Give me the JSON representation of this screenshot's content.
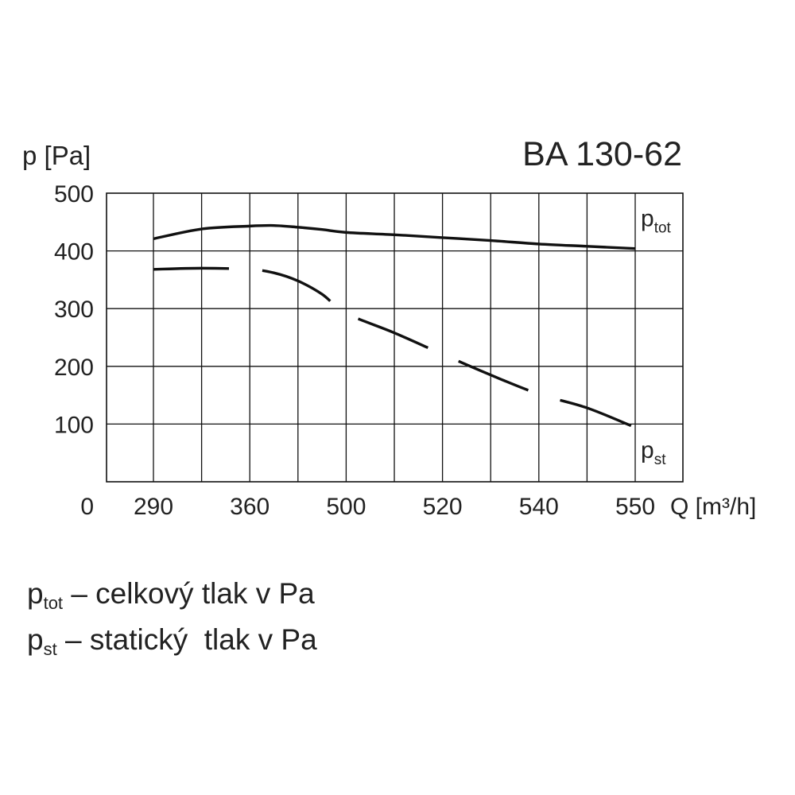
{
  "chart_data": {
    "type": "line",
    "title": "BA 130-62",
    "ylabel": "p [Pa]",
    "xlabel": "Q [m³/h]",
    "origin_label": "0",
    "categories": [
      "290",
      "360",
      "500",
      "520",
      "540",
      "550"
    ],
    "yticks": [
      100,
      200,
      300,
      400,
      500
    ],
    "ylim": [
      0,
      500
    ],
    "grid": true,
    "series": [
      {
        "name": "ptot",
        "label_main": "p",
        "label_sub": "tot",
        "style": "solid",
        "x": [
          290,
          325,
          360,
          395,
          430,
          465,
          500,
          510,
          520,
          530,
          540,
          545,
          550
        ],
        "y": [
          421,
          438,
          443,
          444,
          441,
          437,
          432,
          428,
          423,
          418,
          412,
          408,
          404
        ]
      },
      {
        "name": "pst",
        "label_main": "p",
        "label_sub": "st",
        "style": "dashed",
        "x": [
          290,
          325,
          360,
          395,
          430,
          465,
          500,
          510,
          520,
          530,
          540,
          545,
          550
        ],
        "y": [
          368,
          370,
          368,
          362,
          348,
          325,
          292,
          258,
          221,
          185,
          152,
          128,
          94
        ]
      }
    ]
  },
  "legend": {
    "items": [
      {
        "symbol": "p",
        "sub": "tot",
        "text": " – celkový tlak v Pa"
      },
      {
        "symbol": "p",
        "sub": "st",
        "text": " – statický  tlak v Pa"
      }
    ]
  },
  "colors": {
    "line": "#111111",
    "grid": "#111111",
    "text": "#222222"
  }
}
